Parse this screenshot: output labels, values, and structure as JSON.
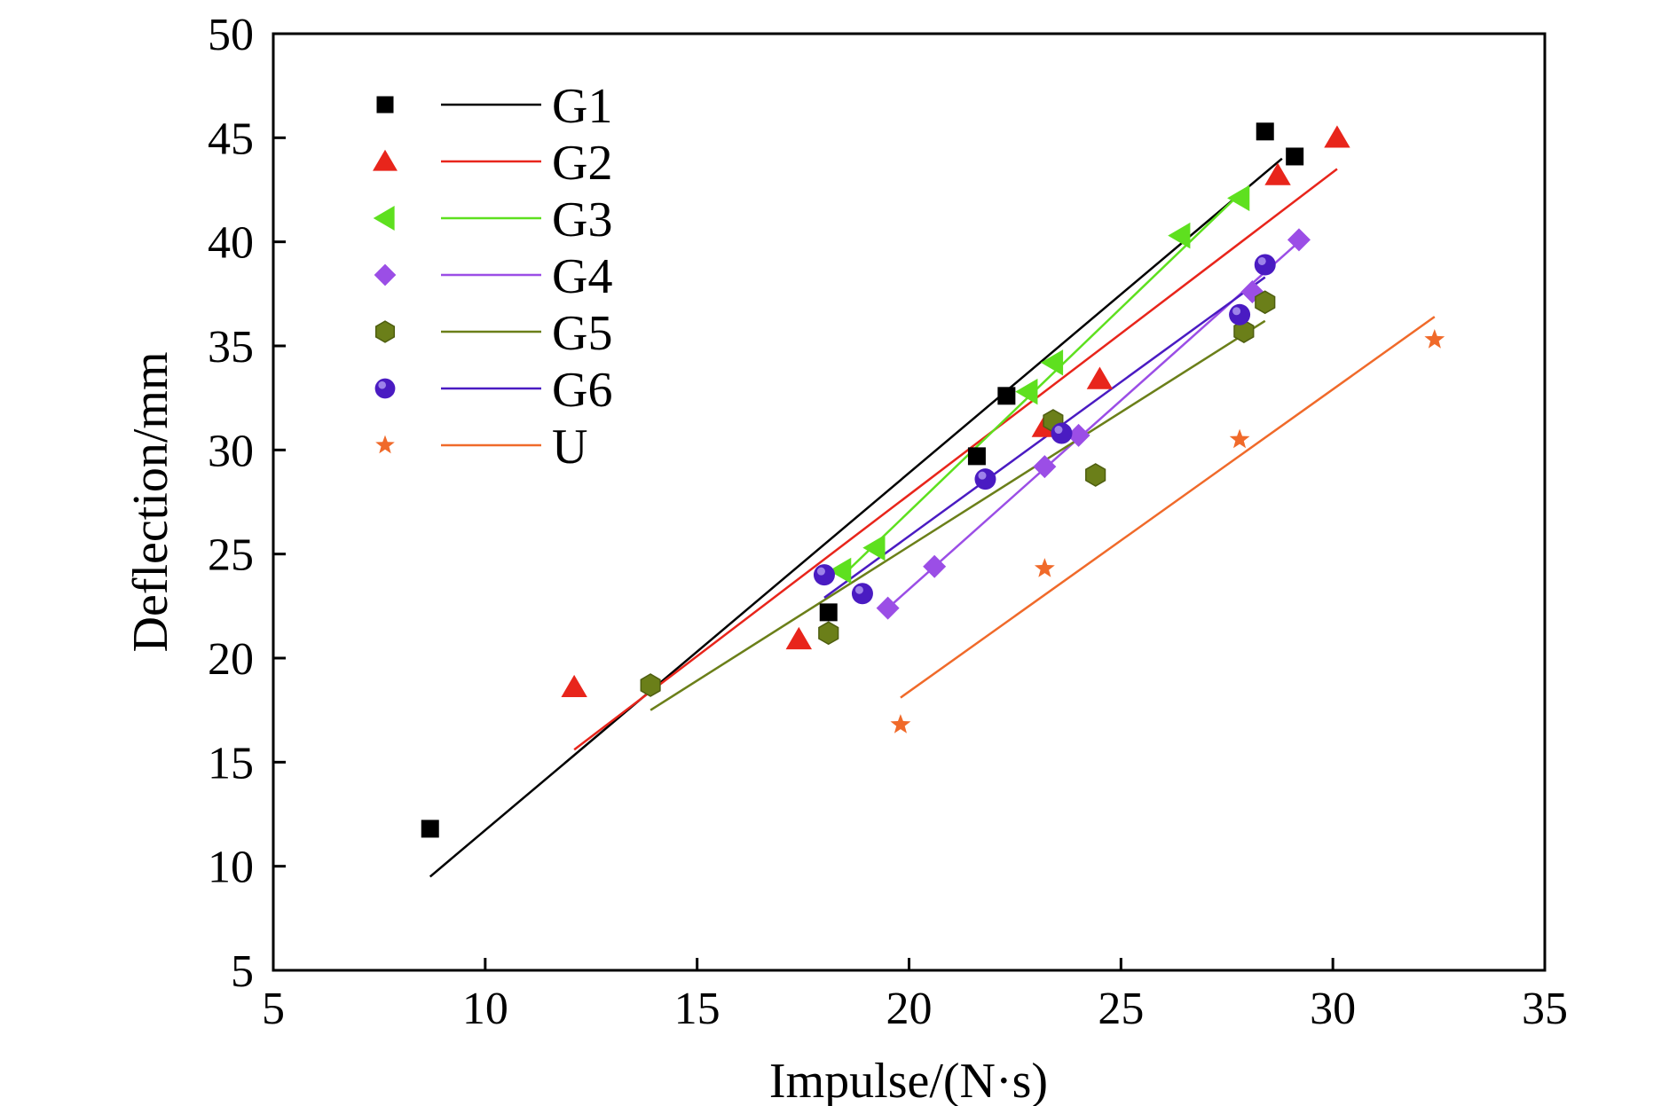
{
  "chart_data": {
    "type": "scatter",
    "xlabel": "Impulse/(N·s)",
    "ylabel": "Deflection/mm",
    "xlim": [
      5,
      35
    ],
    "ylim": [
      5,
      50
    ],
    "xticks": [
      5,
      10,
      15,
      20,
      25,
      30,
      35
    ],
    "yticks": [
      5,
      10,
      15,
      20,
      25,
      30,
      35,
      40,
      45,
      50
    ],
    "grid": false,
    "legend_position": "top-left",
    "series": [
      {
        "name": "G1",
        "marker": "square",
        "color": "#000000",
        "points": [
          [
            8.7,
            11.8
          ],
          [
            18.1,
            22.2
          ],
          [
            21.6,
            29.7
          ],
          [
            22.3,
            32.6
          ],
          [
            28.4,
            45.3
          ],
          [
            29.1,
            44.1
          ]
        ],
        "fit": [
          [
            8.7,
            9.5
          ],
          [
            28.8,
            44.0
          ]
        ]
      },
      {
        "name": "G2",
        "marker": "triangle-up",
        "color": "#e8251b",
        "points": [
          [
            12.1,
            18.6
          ],
          [
            17.4,
            20.9
          ],
          [
            23.2,
            31.1
          ],
          [
            24.5,
            33.4
          ],
          [
            28.7,
            43.2
          ],
          [
            30.1,
            45.0
          ]
        ],
        "fit": [
          [
            12.1,
            15.6
          ],
          [
            30.1,
            43.5
          ]
        ]
      },
      {
        "name": "G3",
        "marker": "triangle-left",
        "color": "#5ee01f",
        "points": [
          [
            18.4,
            24.2
          ],
          [
            19.2,
            25.3
          ],
          [
            22.8,
            32.8
          ],
          [
            23.4,
            34.2
          ],
          [
            26.4,
            40.3
          ],
          [
            27.8,
            42.1
          ]
        ],
        "fit": [
          [
            18.4,
            23.9
          ],
          [
            27.8,
            42.3
          ]
        ]
      },
      {
        "name": "G4",
        "marker": "diamond",
        "color": "#9b4ee6",
        "points": [
          [
            19.5,
            22.4
          ],
          [
            20.6,
            24.4
          ],
          [
            23.2,
            29.2
          ],
          [
            24.0,
            30.7
          ],
          [
            28.1,
            37.6
          ],
          [
            29.2,
            40.1
          ]
        ],
        "fit": [
          [
            19.5,
            22.4
          ],
          [
            29.2,
            40.0
          ]
        ]
      },
      {
        "name": "G5",
        "marker": "hexagon",
        "color": "#6b7f19",
        "points": [
          [
            13.9,
            18.7
          ],
          [
            18.1,
            21.2
          ],
          [
            23.4,
            31.4
          ],
          [
            24.4,
            28.8
          ],
          [
            27.9,
            35.7
          ],
          [
            28.4,
            37.1
          ]
        ],
        "fit": [
          [
            13.9,
            17.5
          ],
          [
            28.4,
            36.2
          ]
        ]
      },
      {
        "name": "G6",
        "marker": "sphere",
        "color": "#4a1bc2",
        "points": [
          [
            18.0,
            24.0
          ],
          [
            18.9,
            23.1
          ],
          [
            21.8,
            28.6
          ],
          [
            23.6,
            30.8
          ],
          [
            27.8,
            36.5
          ],
          [
            28.4,
            38.9
          ]
        ],
        "fit": [
          [
            18.0,
            22.9
          ],
          [
            28.4,
            38.3
          ]
        ]
      },
      {
        "name": "U",
        "marker": "star",
        "color": "#f06a2a",
        "points": [
          [
            19.8,
            16.8
          ],
          [
            23.2,
            24.3
          ],
          [
            27.8,
            30.5
          ],
          [
            32.4,
            35.3
          ]
        ],
        "fit": [
          [
            19.8,
            18.1
          ],
          [
            32.4,
            36.4
          ]
        ]
      }
    ]
  }
}
